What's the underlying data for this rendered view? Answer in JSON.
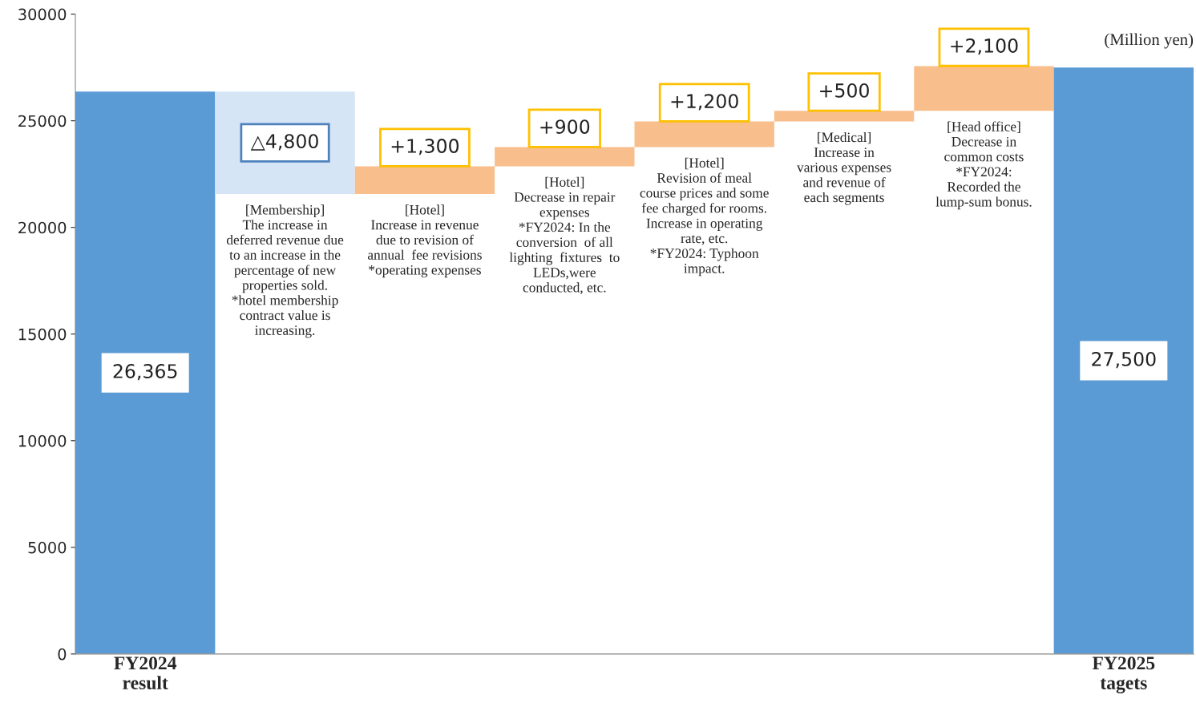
{
  "chart_data": {
    "type": "bar",
    "categories": [
      "FY2024\nresult",
      null,
      null,
      null,
      null,
      null,
      null,
      "FY2025\ntagets"
    ],
    "values": [
      26365,
      -4800,
      1300,
      900,
      1200,
      500,
      2100,
      27500
    ],
    "base": [
      0,
      26365,
      21565,
      22865,
      23765,
      24965,
      25465,
      0
    ],
    "colors": [
      "#5b9bd5",
      "#d6e5f6",
      "#f8be8c",
      "#f8be8c",
      "#f8be8c",
      "#f8be8c",
      "#f8be8c",
      "#5b9bd5"
    ],
    "value_labels": [
      "26,365",
      "△4,800",
      "+1,300",
      "+900",
      "+1,200",
      "+500",
      "+2,100",
      "27,500"
    ],
    "ylim": [
      0,
      30000
    ],
    "yticks": [
      0,
      5000,
      10000,
      15000,
      20000,
      25000,
      30000
    ],
    "grid": false,
    "annotations": [
      "(Million yen)",
      "[Membership]\nThe increase in\ndeferred revenue due\nto an increase in the\npercentage of new\nproperties sold.\n*hotel membership\ncontract value is\nincreasing.",
      "[Hotel]\nIncrease in revenue\ndue to revision of\nannual  fee revisions\n*operating expenses",
      "[Hotel]\nDecrease in repair\nexpenses\n*FY2024: In the\nconversion  of all\nlighting  fixtures  to\nLEDs,were\nconducted, etc.",
      "[Hotel]\nRevision of meal\ncourse prices and some\nfee charged for rooms.\nIncrease in operating\nrate, etc.\n*FY2024: Typhoon\nimpact.",
      "[Medical]\nIncrease in\nvarious expenses\nand revenue of\neach segments",
      "[Head office]\nDecrease in\ncommon costs\n*FY2024:\nRecorded the\nlump-sum bonus."
    ]
  }
}
